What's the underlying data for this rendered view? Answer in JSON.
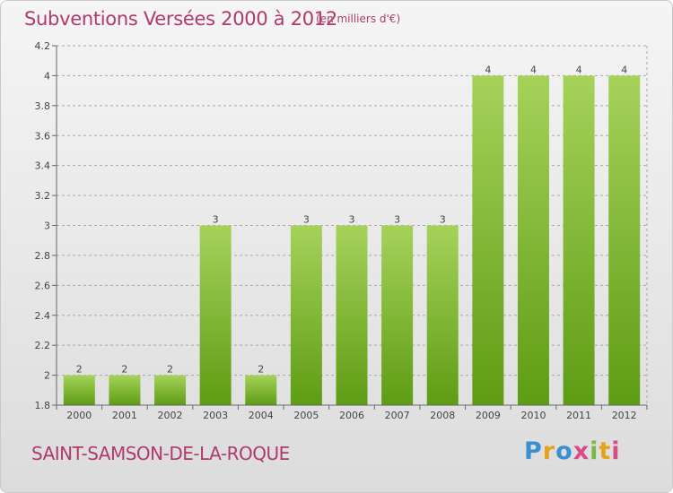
{
  "header": {
    "title": "Subventions Versées 2000 à 2012",
    "units": "(en milliers d'€)"
  },
  "footer": {
    "commune": "SAINT-SAMSON-DE-LA-ROQUE",
    "logo_text": "Proxiti"
  },
  "colors": {
    "title": "#b03a6a",
    "bar_light": "#a6d25a",
    "bar_dark": "#5e9c14",
    "grid": "#a8a8a8"
  },
  "chart_data": {
    "type": "bar",
    "categories": [
      "2000",
      "2001",
      "2002",
      "2003",
      "2004",
      "2005",
      "2006",
      "2007",
      "2008",
      "2009",
      "2010",
      "2011",
      "2012"
    ],
    "values": [
      2,
      2,
      2,
      3,
      2,
      3,
      3,
      3,
      3,
      4,
      4,
      4,
      4
    ],
    "data_labels": [
      "2",
      "2",
      "2",
      "3",
      "2",
      "3",
      "3",
      "3",
      "3",
      "4",
      "4",
      "4",
      "4"
    ],
    "y_ticks": [
      "1.8",
      "2",
      "2.2",
      "2.4",
      "2.6",
      "2.8",
      "3",
      "3.2",
      "3.4",
      "3.6",
      "3.8",
      "4",
      "4.2"
    ],
    "ylim": [
      1.8,
      4.2
    ],
    "grid": "horizontal dashed",
    "legend": "none"
  }
}
